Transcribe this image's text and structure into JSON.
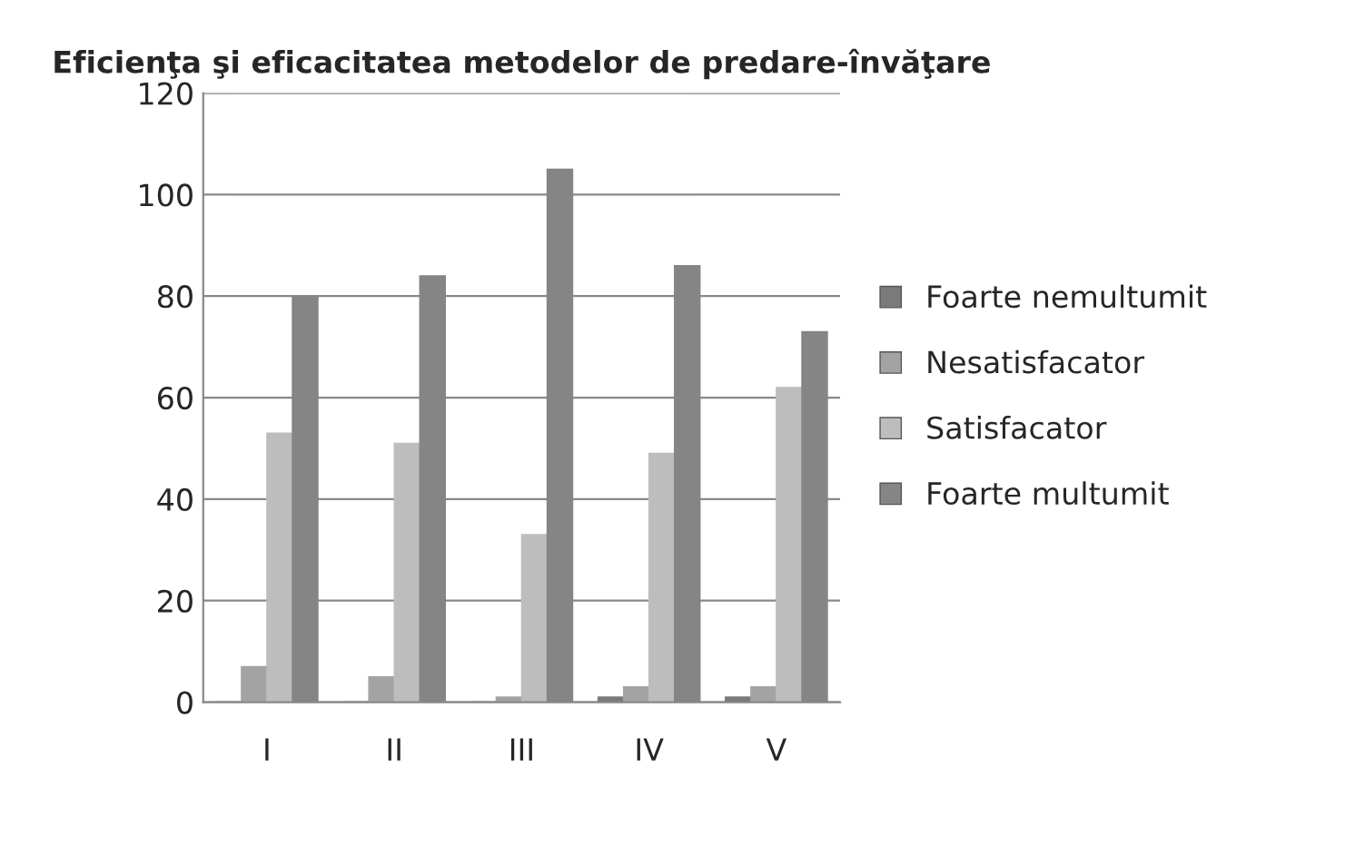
{
  "chart_data": {
    "type": "bar",
    "title": "Eficienţa şi eficacitatea metodelor de predare-învăţare",
    "categories": [
      "I",
      "II",
      "III",
      "IV",
      "V"
    ],
    "series": [
      {
        "name": "Foarte nemultumit",
        "color": "#7a7a7a",
        "values": [
          0,
          0,
          0,
          1,
          1
        ]
      },
      {
        "name": "Nesatisfacator",
        "color": "#a3a3a3",
        "values": [
          7,
          5,
          1,
          3,
          3
        ]
      },
      {
        "name": "Satisfacator",
        "color": "#bdbdbd",
        "values": [
          53,
          51,
          33,
          49,
          62
        ]
      },
      {
        "name": "Foarte multumit",
        "color": "#858585",
        "values": [
          80,
          84,
          105,
          86,
          73
        ]
      }
    ],
    "ylim": [
      0,
      120
    ],
    "yticks": [
      0,
      20,
      40,
      60,
      80,
      100,
      120
    ],
    "grid": "y",
    "legend": "right"
  }
}
